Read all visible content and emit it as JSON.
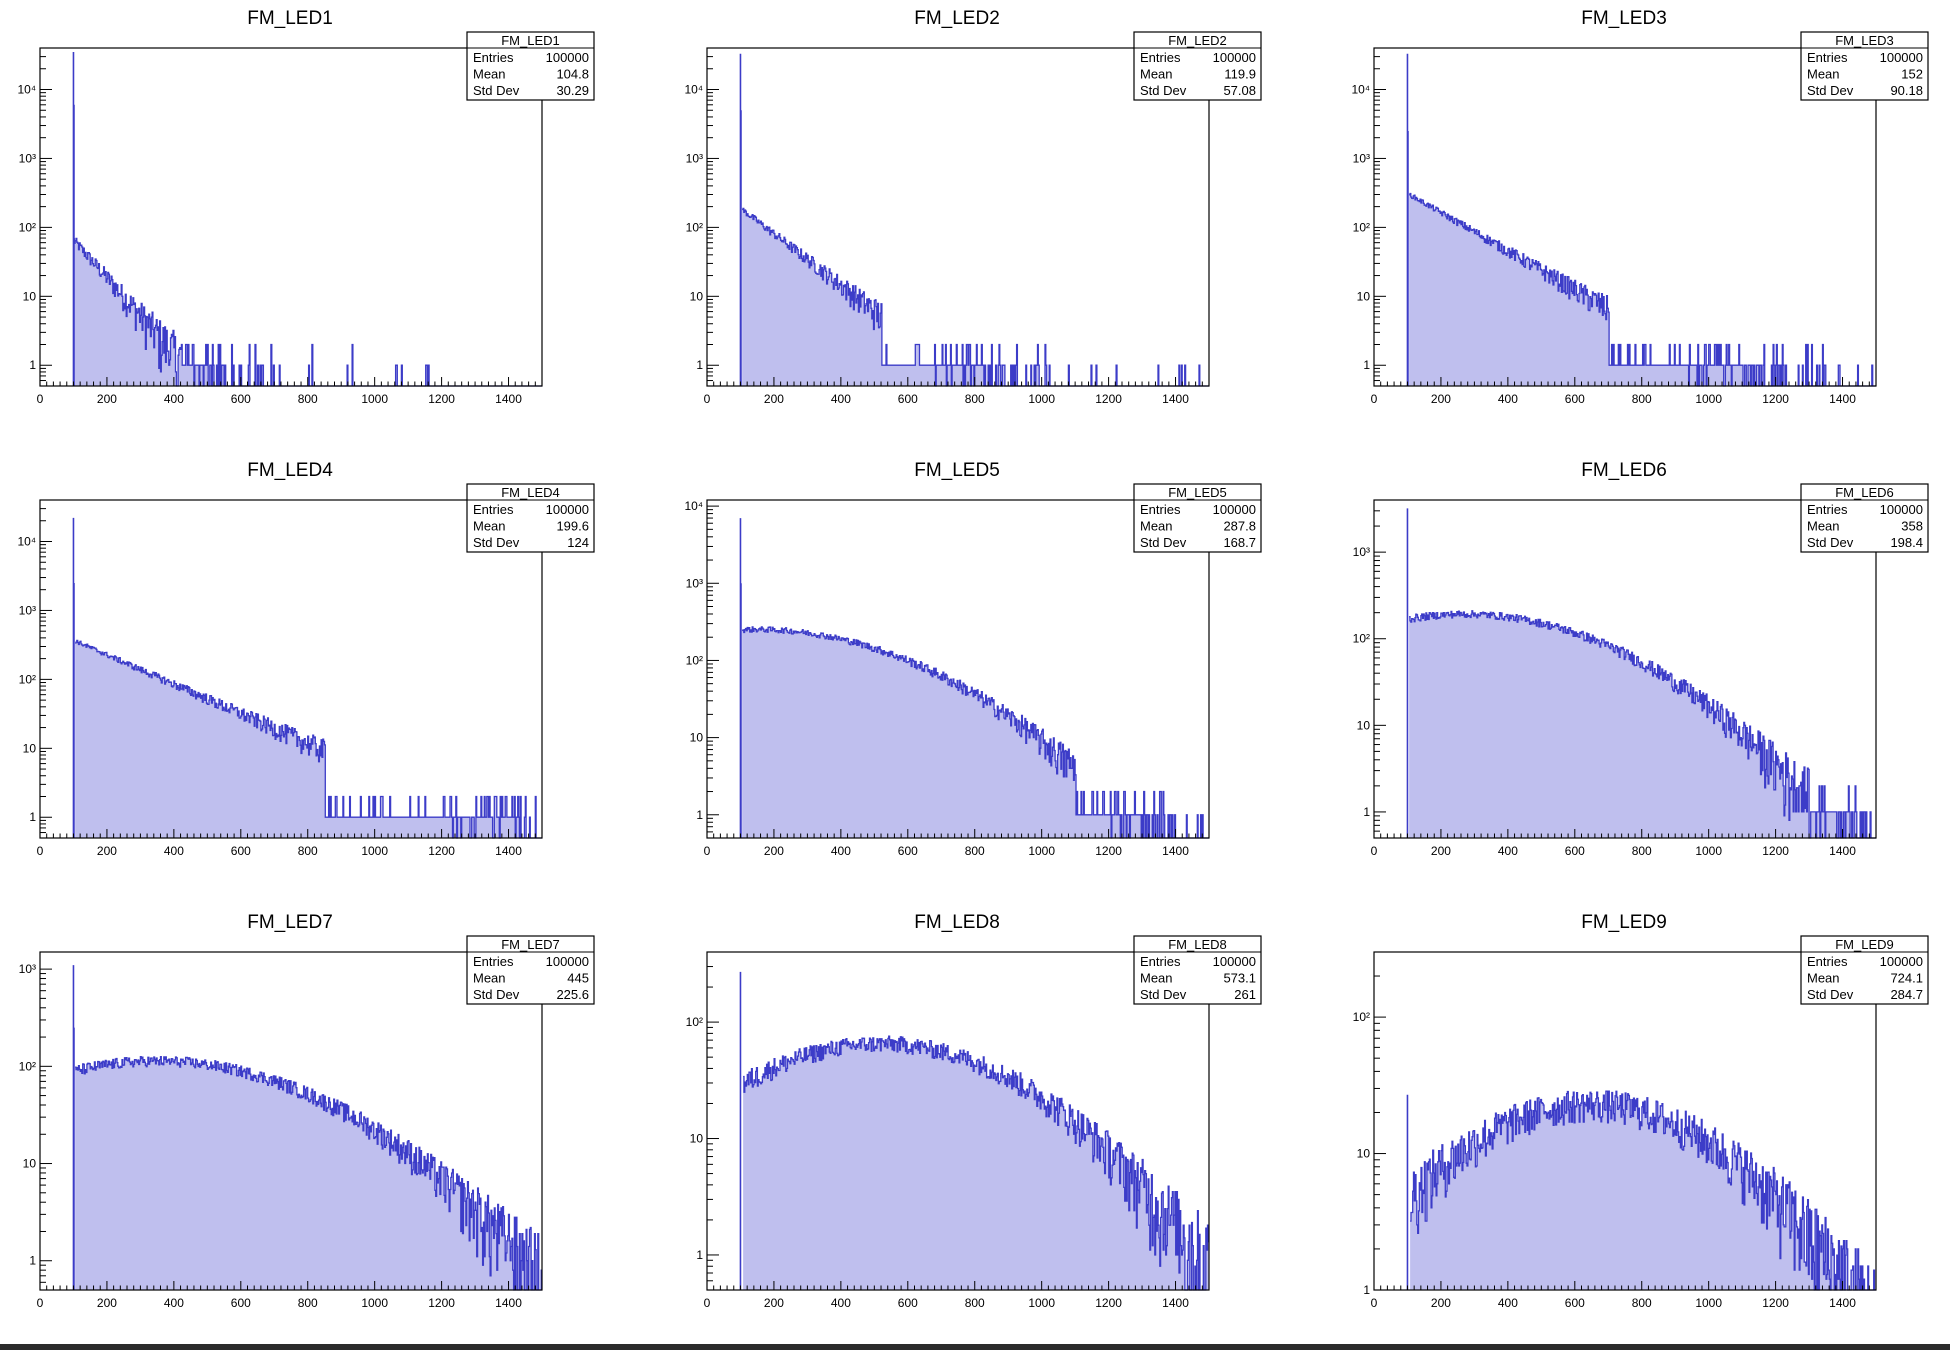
{
  "chart_data": [
    {
      "type": "bar",
      "name": "FM_LED1",
      "title": "FM_LED1",
      "stats": {
        "title": "FM_LED1",
        "entries_label": "Entries",
        "entries": "100000",
        "mean_label": "Mean",
        "mean": "104.8",
        "std_label": "Std Dev",
        "std": "30.29"
      },
      "xlim": [
        0,
        1500
      ],
      "ylim": [
        0.5,
        40000
      ],
      "yscale": "log",
      "xticks": [
        "0",
        "200",
        "400",
        "600",
        "800",
        "1000",
        "1200",
        "1400"
      ],
      "yticks": [
        {
          "v": 1,
          "label": "1"
        },
        {
          "v": 10,
          "label": "10"
        },
        {
          "v": 100,
          "label": "10²"
        },
        {
          "v": 1000,
          "label": "10³"
        },
        {
          "v": 10000,
          "label": "10⁴"
        }
      ],
      "spike": {
        "x": 100,
        "values": [
          35000,
          6000
        ]
      },
      "shape": {
        "start": 100,
        "y0": 65,
        "decay": 0.0125,
        "peak": null,
        "cut": 420,
        "tail_end": 1220,
        "sparse": true
      }
    },
    {
      "type": "bar",
      "name": "FM_LED2",
      "title": "FM_LED2",
      "stats": {
        "title": "FM_LED2",
        "entries_label": "Entries",
        "entries": "100000",
        "mean_label": "Mean",
        "mean": "119.9",
        "std_label": "Std Dev",
        "std": "57.08"
      },
      "xlim": [
        0,
        1500
      ],
      "ylim": [
        0.5,
        40000
      ],
      "yscale": "log",
      "xticks": [
        "0",
        "200",
        "400",
        "600",
        "800",
        "1000",
        "1200",
        "1400"
      ],
      "yticks": [
        {
          "v": 1,
          "label": "1"
        },
        {
          "v": 10,
          "label": "10"
        },
        {
          "v": 100,
          "label": "10²"
        },
        {
          "v": 1000,
          "label": "10³"
        },
        {
          "v": 10000,
          "label": "10⁴"
        }
      ],
      "spike": {
        "x": 100,
        "values": [
          33000,
          5000
        ]
      },
      "shape": {
        "start": 105,
        "y0": 180,
        "decay": 0.0085,
        "peak": null,
        "cut": 520,
        "tail_end": 1500,
        "sparse": true
      }
    },
    {
      "type": "bar",
      "name": "FM_LED3",
      "title": "FM_LED3",
      "stats": {
        "title": "FM_LED3",
        "entries_label": "Entries",
        "entries": "100000",
        "mean_label": "Mean",
        "mean": "152",
        "std_label": "Std Dev",
        "std": "90.18"
      },
      "xlim": [
        0,
        1500
      ],
      "ylim": [
        0.5,
        40000
      ],
      "yscale": "log",
      "xticks": [
        "0",
        "200",
        "400",
        "600",
        "800",
        "1000",
        "1200",
        "1400"
      ],
      "yticks": [
        {
          "v": 1,
          "label": "1"
        },
        {
          "v": 10,
          "label": "10"
        },
        {
          "v": 100,
          "label": "10²"
        },
        {
          "v": 1000,
          "label": "10³"
        },
        {
          "v": 10000,
          "label": "10⁴"
        }
      ],
      "spike": {
        "x": 100,
        "values": [
          33000,
          2500
        ]
      },
      "shape": {
        "start": 105,
        "y0": 300,
        "decay": 0.0064,
        "peak": null,
        "cut": 700,
        "tail_end": 1500,
        "sparse": true
      }
    },
    {
      "type": "bar",
      "name": "FM_LED4",
      "title": "FM_LED4",
      "stats": {
        "title": "FM_LED4",
        "entries_label": "Entries",
        "entries": "100000",
        "mean_label": "Mean",
        "mean": "199.6",
        "std_label": "Std Dev",
        "std": "124"
      },
      "xlim": [
        0,
        1500
      ],
      "ylim": [
        0.5,
        40000
      ],
      "yscale": "log",
      "xticks": [
        "0",
        "200",
        "400",
        "600",
        "800",
        "1000",
        "1200",
        "1400"
      ],
      "yticks": [
        {
          "v": 1,
          "label": "1"
        },
        {
          "v": 10,
          "label": "10"
        },
        {
          "v": 100,
          "label": "10²"
        },
        {
          "v": 1000,
          "label": "10³"
        },
        {
          "v": 10000,
          "label": "10⁴"
        }
      ],
      "spike": {
        "x": 100,
        "values": [
          22000,
          2500
        ]
      },
      "shape": {
        "start": 105,
        "y0": 360,
        "decay": 0.0049,
        "peak": null,
        "cut": 850,
        "tail_end": 1480,
        "sparse": true
      }
    },
    {
      "type": "bar",
      "name": "FM_LED5",
      "title": "FM_LED5",
      "stats": {
        "title": "FM_LED5",
        "entries_label": "Entries",
        "entries": "100000",
        "mean_label": "Mean",
        "mean": "287.8",
        "std_label": "Std Dev",
        "std": "168.7"
      },
      "xlim": [
        0,
        1500
      ],
      "ylim": [
        0.5,
        12000
      ],
      "yscale": "log",
      "xticks": [
        "0",
        "200",
        "400",
        "600",
        "800",
        "1000",
        "1200",
        "1400"
      ],
      "yticks": [
        {
          "v": 1,
          "label": "1"
        },
        {
          "v": 10,
          "label": "10"
        },
        {
          "v": 100,
          "label": "10²"
        },
        {
          "v": 1000,
          "label": "10³"
        },
        {
          "v": 10000,
          "label": "10⁴"
        }
      ],
      "spike": {
        "x": 100,
        "values": [
          7000,
          1000
        ]
      },
      "shape": {
        "start": 105,
        "y0": 250,
        "decay": 0.0,
        "peak": {
          "mu": 150,
          "sigma": 330
        },
        "cut": 1100,
        "tail_end": 1500,
        "sparse": true
      }
    },
    {
      "type": "bar",
      "name": "FM_LED6",
      "title": "FM_LED6",
      "stats": {
        "title": "FM_LED6",
        "entries_label": "Entries",
        "entries": "100000",
        "mean_label": "Mean",
        "mean": "358",
        "std_label": "Std Dev",
        "std": "198.4"
      },
      "xlim": [
        0,
        1500
      ],
      "ylim": [
        0.5,
        4000
      ],
      "yscale": "log",
      "xticks": [
        "0",
        "200",
        "400",
        "600",
        "800",
        "1000",
        "1200",
        "1400"
      ],
      "yticks": [
        {
          "v": 1,
          "label": "1"
        },
        {
          "v": 10,
          "label": "10"
        },
        {
          "v": 100,
          "label": "10²"
        },
        {
          "v": 1000,
          "label": "10³"
        }
      ],
      "spike": {
        "x": 100,
        "values": [
          3200
        ]
      },
      "shape": {
        "start": 105,
        "y0": 170,
        "decay": 0.0,
        "peak": {
          "mu": 270,
          "sigma": 330
        },
        "cut": 1300,
        "tail_end": 1500,
        "sparse": true
      }
    },
    {
      "type": "bar",
      "name": "FM_LED7",
      "title": "FM_LED7",
      "stats": {
        "title": "FM_LED7",
        "entries_label": "Entries",
        "entries": "100000",
        "mean_label": "Mean",
        "mean": "445",
        "std_label": "Std Dev",
        "std": "225.6"
      },
      "xlim": [
        0,
        1500
      ],
      "ylim": [
        0.5,
        1500
      ],
      "yscale": "log",
      "xticks": [
        "0",
        "200",
        "400",
        "600",
        "800",
        "1000",
        "1200",
        "1400"
      ],
      "yticks": [
        {
          "v": 1,
          "label": "1"
        },
        {
          "v": 10,
          "label": "10"
        },
        {
          "v": 100,
          "label": "10²"
        },
        {
          "v": 1000,
          "label": "10³"
        }
      ],
      "spike": {
        "x": 100,
        "values": [
          1100,
          250
        ]
      },
      "shape": {
        "start": 105,
        "y0": 90,
        "decay": 0.0,
        "peak": {
          "mu": 350,
          "sigma": 360
        },
        "cut": 1500,
        "tail_end": 1500,
        "sparse": false
      }
    },
    {
      "type": "bar",
      "name": "FM_LED8",
      "title": "FM_LED8",
      "stats": {
        "title": "FM_LED8",
        "entries_label": "Entries",
        "entries": "100000",
        "mean_label": "Mean",
        "mean": "573.1",
        "std_label": "Std Dev",
        "std": "261"
      },
      "xlim": [
        0,
        1500
      ],
      "ylim": [
        0.5,
        400
      ],
      "yscale": "log",
      "xticks": [
        "0",
        "200",
        "400",
        "600",
        "800",
        "1000",
        "1200",
        "1400"
      ],
      "yticks": [
        {
          "v": 1,
          "label": "1"
        },
        {
          "v": 10,
          "label": "10"
        },
        {
          "v": 100,
          "label": "10²"
        }
      ],
      "spike": {
        "x": 100,
        "values": [
          270
        ]
      },
      "shape": {
        "start": 108,
        "y0": 30,
        "decay": 0.0,
        "peak": {
          "mu": 520,
          "sigma": 330
        },
        "cut": 1500,
        "tail_end": 1500,
        "sparse": false
      }
    },
    {
      "type": "bar",
      "name": "FM_LED9",
      "title": "FM_LED9",
      "stats": {
        "title": "FM_LED9",
        "entries_label": "Entries",
        "entries": "100000",
        "mean_label": "Mean",
        "mean": "724.1",
        "std_label": "Std Dev",
        "std": "284.7"
      },
      "xlim": [
        0,
        1500
      ],
      "ylim": [
        1,
        300
      ],
      "yscale": "log",
      "xticks": [
        "0",
        "200",
        "400",
        "600",
        "800",
        "1000",
        "1200",
        "1400"
      ],
      "yticks": [
        {
          "v": 1,
          "label": "1"
        },
        {
          "v": 10,
          "label": "10"
        },
        {
          "v": 100,
          "label": "10²"
        }
      ],
      "spike": {
        "x": 100,
        "values": [
          27
        ]
      },
      "shape": {
        "start": 108,
        "y0": 5,
        "decay": 0.0,
        "peak": {
          "mu": 650,
          "sigma": 310
        },
        "cut": 1500,
        "tail_end": 1500,
        "sparse": false
      }
    }
  ],
  "colors": {
    "line": "#3c3cc8",
    "fill": "#8a8ae0",
    "frame": "#000000"
  }
}
